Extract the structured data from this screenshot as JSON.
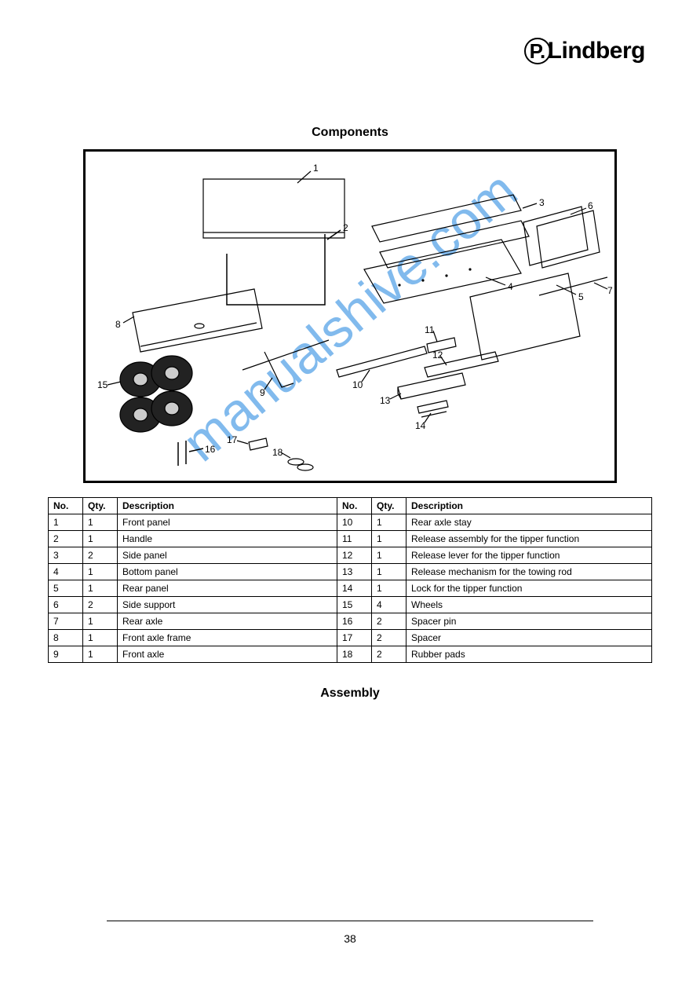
{
  "logo": {
    "circle": "P.",
    "rest": "Lindberg"
  },
  "section_title": "Components",
  "watermark_text": "manualshive.com",
  "labels": [
    "1",
    "2",
    "3",
    "4",
    "5",
    "6",
    "7",
    "8",
    "9",
    "10",
    "11",
    "12",
    "13",
    "14",
    "15",
    "16",
    "17",
    "18"
  ],
  "table": {
    "headers": [
      "No.",
      "Qty.",
      "Description",
      "No.",
      "Qty.",
      "Description"
    ],
    "rows": [
      [
        "1",
        "1",
        "Front panel",
        "10",
        "1",
        "Rear axle stay"
      ],
      [
        "2",
        "1",
        "Handle",
        "11",
        "1",
        "Release assembly for the tipper function"
      ],
      [
        "3",
        "2",
        "Side panel",
        "12",
        "1",
        "Release lever for the tipper function"
      ],
      [
        "4",
        "1",
        "Bottom panel",
        "13",
        "1",
        "Release mechanism for the towing rod"
      ],
      [
        "5",
        "1",
        "Rear panel",
        "14",
        "1",
        "Lock for the tipper function"
      ],
      [
        "6",
        "2",
        "Side support",
        "15",
        "4",
        "Wheels"
      ],
      [
        "7",
        "1",
        "Rear axle",
        "16",
        "2",
        "Spacer pin"
      ],
      [
        "8",
        "1",
        "Front axle frame",
        "17",
        "2",
        "Spacer"
      ],
      [
        "9",
        "1",
        "Front axle",
        "18",
        "2",
        "Rubber pads"
      ]
    ]
  },
  "assembly_title": "Assembly",
  "page_number": "38"
}
